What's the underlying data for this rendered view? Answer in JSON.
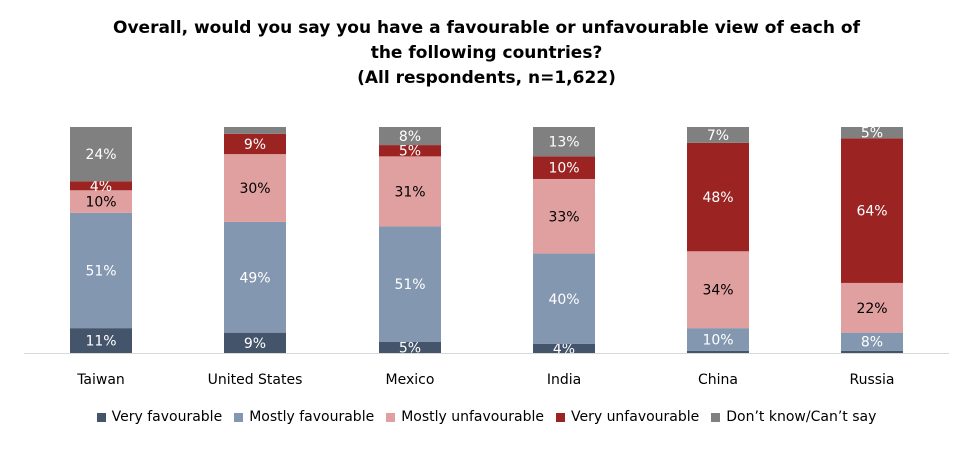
{
  "chart_data": {
    "type": "bar",
    "stacked": true,
    "percent_stacked": true,
    "title_lines": [
      "Overall, would you say you have a favourable or unfavourable view of each of",
      "the following countries?",
      "(All respondents, n=1,622)"
    ],
    "categories": [
      "Taiwan",
      "United States",
      "Mexico",
      "India",
      "China",
      "Russia"
    ],
    "series": [
      {
        "name": "Very favourable",
        "color": "#44546A",
        "values": [
          11,
          9,
          5,
          4,
          1,
          1
        ],
        "labels": [
          "11%",
          "9%",
          "5%",
          "4%",
          "",
          ""
        ]
      },
      {
        "name": "Mostly favourable",
        "color": "#8497B0",
        "values": [
          51,
          49,
          51,
          40,
          10,
          8
        ],
        "labels": [
          "51%",
          "49%",
          "51%",
          "40%",
          "10%",
          "8%"
        ]
      },
      {
        "name": "Mostly unfavourable",
        "color": "#E0A0A0",
        "values": [
          10,
          30,
          31,
          33,
          34,
          22
        ],
        "labels": [
          "10%",
          "30%",
          "31%",
          "33%",
          "34%",
          "22%"
        ]
      },
      {
        "name": "Very unfavourable",
        "color": "#9B2423",
        "values": [
          4,
          9,
          5,
          10,
          48,
          64
        ],
        "labels": [
          "4%",
          "9%",
          "5%",
          "10%",
          "48%",
          "64%"
        ]
      },
      {
        "name": "Don’t know/Can’t say",
        "color": "#808080",
        "values": [
          24,
          3,
          8,
          13,
          7,
          5
        ],
        "labels": [
          "24%",
          "",
          "8%",
          "13%",
          "7%",
          "5%"
        ]
      }
    ],
    "ylim": [
      0,
      100
    ],
    "grid": false,
    "legend_position": "bottom"
  }
}
